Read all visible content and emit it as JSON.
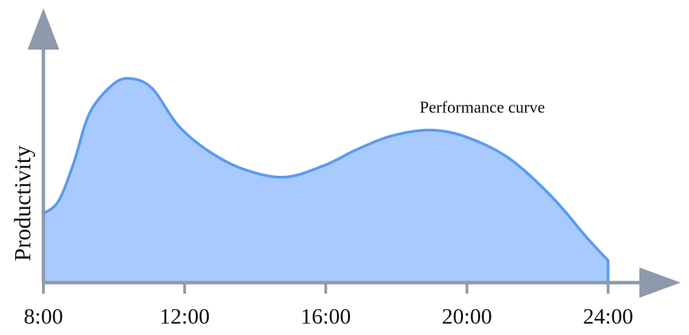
{
  "chart_data": {
    "type": "area",
    "y_label": "Productivity",
    "annotation": "Performance curve",
    "x": [
      8,
      8.43,
      8.86,
      9.3,
      9.9,
      10.4,
      11.06,
      11.8,
      12.6,
      13.6,
      14.8,
      15.95,
      16.9,
      17.9,
      18.98,
      20,
      21.2,
      22.4,
      23.4,
      24
    ],
    "values": [
      25.3,
      30,
      44,
      62,
      72,
      75,
      71.6,
      58,
      49,
      42,
      38.7,
      43,
      49,
      54,
      56,
      53.4,
      45.6,
      31.6,
      16.5,
      8.1
    ],
    "color": "#5b9bf0",
    "fill": "#a8caff",
    "xlim": [
      8,
      26
    ],
    "ylim": [
      0,
      100
    ],
    "xticks": [
      {
        "value": 8,
        "label": "8:00"
      },
      {
        "value": 12,
        "label": "12:00"
      },
      {
        "value": 16,
        "label": "16:00"
      },
      {
        "value": 20,
        "label": "20:00"
      },
      {
        "value": 24,
        "label": "24:00"
      }
    ]
  }
}
